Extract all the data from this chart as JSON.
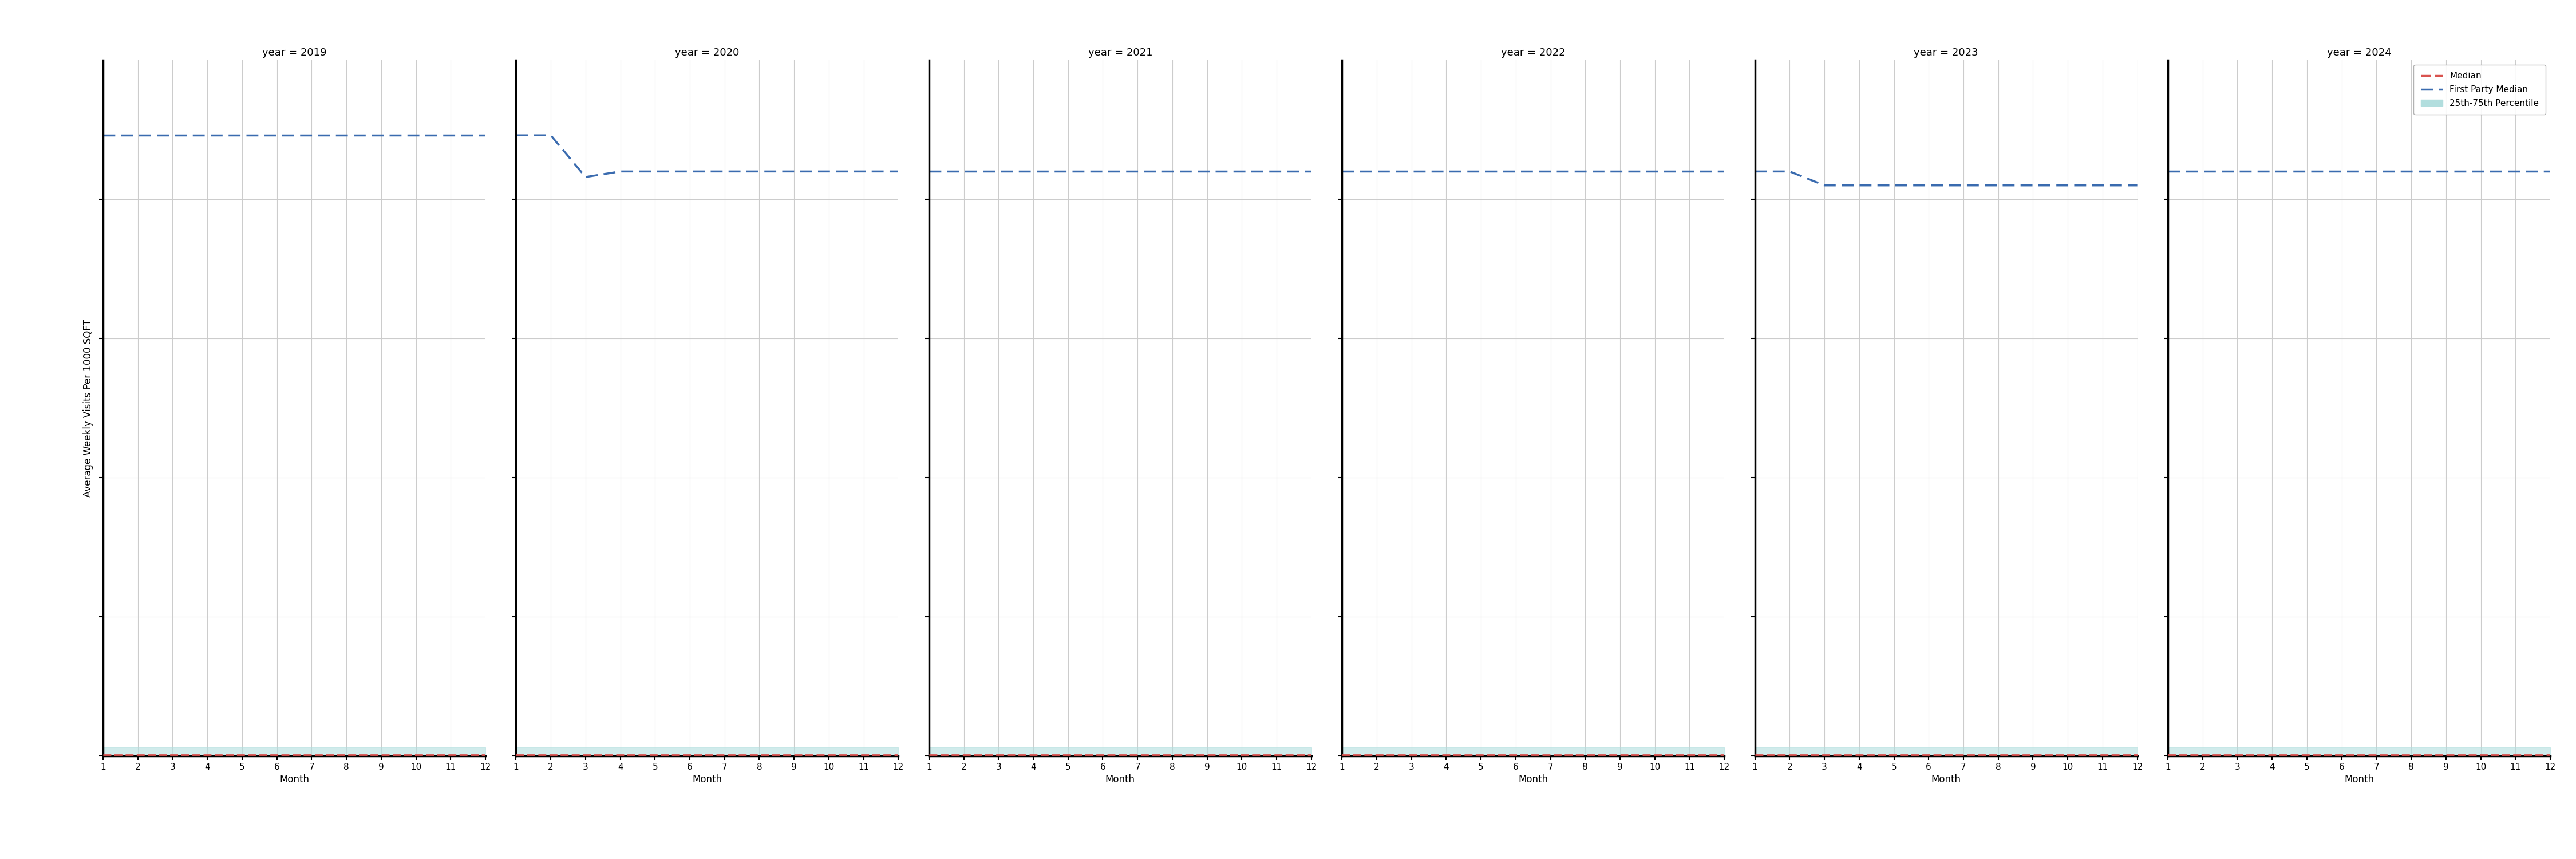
{
  "years": [
    2019,
    2020,
    2021,
    2022,
    2023,
    2024
  ],
  "months": [
    1,
    2,
    3,
    4,
    5,
    6,
    7,
    8,
    9,
    10,
    11,
    12
  ],
  "first_party_median": {
    "2019": [
      22.3,
      22.3,
      22.3,
      22.3,
      22.3,
      22.3,
      22.3,
      22.3,
      22.3,
      22.3,
      22.3,
      22.3
    ],
    "2020": [
      22.3,
      22.3,
      20.8,
      21.0,
      21.0,
      21.0,
      21.0,
      21.0,
      21.0,
      21.0,
      21.0,
      21.0
    ],
    "2021": [
      21.0,
      21.0,
      21.0,
      21.0,
      21.0,
      21.0,
      21.0,
      21.0,
      21.0,
      21.0,
      21.0,
      21.0
    ],
    "2022": [
      21.0,
      21.0,
      21.0,
      21.0,
      21.0,
      21.0,
      21.0,
      21.0,
      21.0,
      21.0,
      21.0,
      21.0
    ],
    "2023": [
      21.0,
      21.0,
      20.5,
      20.5,
      20.5,
      20.5,
      20.5,
      20.5,
      20.5,
      20.5,
      20.5,
      20.5
    ],
    "2024": [
      21.0,
      21.0,
      21.0,
      21.0,
      21.0,
      21.0,
      21.0,
      21.0,
      21.0,
      21.0,
      21.0,
      21.0
    ]
  },
  "median": {
    "2019": [
      0.05,
      0.05,
      0.05,
      0.05,
      0.05,
      0.05,
      0.05,
      0.05,
      0.05,
      0.05,
      0.05,
      0.05
    ],
    "2020": [
      0.05,
      0.05,
      0.05,
      0.05,
      0.05,
      0.05,
      0.05,
      0.05,
      0.05,
      0.05,
      0.05,
      0.05
    ],
    "2021": [
      0.05,
      0.05,
      0.05,
      0.05,
      0.05,
      0.05,
      0.05,
      0.05,
      0.05,
      0.05,
      0.05,
      0.05
    ],
    "2022": [
      0.05,
      0.05,
      0.05,
      0.05,
      0.05,
      0.05,
      0.05,
      0.05,
      0.05,
      0.05,
      0.05,
      0.05
    ],
    "2023": [
      0.05,
      0.05,
      0.05,
      0.05,
      0.05,
      0.05,
      0.05,
      0.05,
      0.05,
      0.05,
      0.05,
      0.05
    ],
    "2024": [
      0.05,
      0.05,
      0.05,
      0.05,
      0.05,
      0.05,
      0.05,
      0.05,
      0.05,
      0.05,
      0.05,
      0.05
    ]
  },
  "p25": {
    "2019": [
      0.0,
      0.0,
      0.0,
      0.0,
      0.0,
      0.0,
      0.0,
      0.0,
      0.0,
      0.0,
      0.0,
      0.0
    ],
    "2020": [
      0.0,
      0.0,
      0.0,
      0.0,
      0.0,
      0.0,
      0.0,
      0.0,
      0.0,
      0.0,
      0.0,
      0.0
    ],
    "2021": [
      0.0,
      0.0,
      0.0,
      0.0,
      0.0,
      0.0,
      0.0,
      0.0,
      0.0,
      0.0,
      0.0,
      0.0
    ],
    "2022": [
      0.0,
      0.0,
      0.0,
      0.0,
      0.0,
      0.0,
      0.0,
      0.0,
      0.0,
      0.0,
      0.0,
      0.0
    ],
    "2023": [
      0.0,
      0.0,
      0.0,
      0.0,
      0.0,
      0.0,
      0.0,
      0.0,
      0.0,
      0.0,
      0.0,
      0.0
    ],
    "2024": [
      0.0,
      0.0,
      0.0,
      0.0,
      0.0,
      0.0,
      0.0,
      0.0,
      0.0,
      0.0,
      0.0,
      0.0
    ]
  },
  "p75": {
    "2019": [
      0.3,
      0.3,
      0.3,
      0.3,
      0.3,
      0.3,
      0.3,
      0.3,
      0.3,
      0.3,
      0.3,
      0.3
    ],
    "2020": [
      0.3,
      0.3,
      0.3,
      0.3,
      0.3,
      0.3,
      0.3,
      0.3,
      0.3,
      0.3,
      0.3,
      0.3
    ],
    "2021": [
      0.3,
      0.3,
      0.3,
      0.3,
      0.3,
      0.3,
      0.3,
      0.3,
      0.3,
      0.3,
      0.3,
      0.3
    ],
    "2022": [
      0.3,
      0.3,
      0.3,
      0.3,
      0.3,
      0.3,
      0.3,
      0.3,
      0.3,
      0.3,
      0.3,
      0.3
    ],
    "2023": [
      0.3,
      0.3,
      0.3,
      0.3,
      0.3,
      0.3,
      0.3,
      0.3,
      0.3,
      0.3,
      0.3,
      0.3
    ],
    "2024": [
      0.3,
      0.3,
      0.3,
      0.3,
      0.3,
      0.3,
      0.3,
      0.3,
      0.3,
      0.3,
      0.3,
      0.3
    ]
  },
  "ylim": [
    0,
    25
  ],
  "yticks": [
    0,
    5,
    10,
    15,
    20
  ],
  "xticks": [
    1,
    2,
    3,
    4,
    5,
    6,
    7,
    8,
    9,
    10,
    11,
    12
  ],
  "xlabel": "Month",
  "ylabel": "Average Weekly Visits Per 1000 SQFT",
  "first_party_color": "#3a6baf",
  "median_color": "#d9534f",
  "percentile_color": "#b2dede",
  "line_width": 2.0,
  "legend_labels": [
    "Median",
    "First Party Median",
    "25th-75th Percentile"
  ],
  "bg_color": "#ffffff",
  "grid_color": "#cccccc",
  "spine_color": "#000000",
  "title_fontsize": 13,
  "label_fontsize": 12,
  "tick_fontsize": 11
}
